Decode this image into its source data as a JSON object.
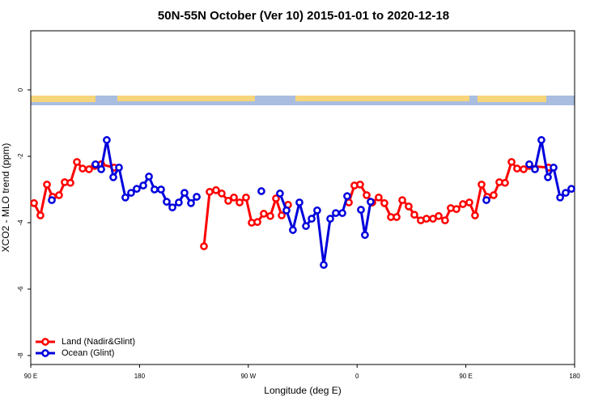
{
  "chart_data": {
    "type": "line",
    "title": "50N-55N October (Ver 10)   2015-01-01 to 2020-12-18",
    "xlabel": "Longitude (deg E)",
    "ylabel": "XCO2 - MLO trend (ppm)",
    "xlim": [
      90,
      540
    ],
    "ylim": [
      -8.27,
      1.78
    ],
    "xticks": [
      {
        "value": 90,
        "label": "90 E"
      },
      {
        "value": 180,
        "label": "180"
      },
      {
        "value": 270,
        "label": "90 W"
      },
      {
        "value": 360,
        "label": "0"
      },
      {
        "value": 450,
        "label": "90 E"
      },
      {
        "value": 540,
        "label": "180"
      }
    ],
    "yticks": [
      0,
      -2,
      -4,
      -6,
      -8
    ],
    "legend": "bottom-left",
    "series": [
      {
        "name": "Land (Nadir&Glint)",
        "color": "#ff0000",
        "x": [
          92.7,
          98.0,
          103.4,
          108.1,
          113.4,
          118.1,
          122.8,
          128.2,
          132.9,
          138.2,
          142.9,
          148.3,
          159.0,
          null,
          233.3,
          238.0,
          243.3,
          248.0,
          253.4,
          258.1,
          262.8,
          268.1,
          272.8,
          277.5,
          282.8,
          288.2,
          292.9,
          297.6,
          302.9,
          null,
          353.2,
          357.8,
          362.5,
          367.9,
          372.6,
          377.9,
          382.6,
          388.0,
          392.7,
          397.4,
          402.7,
          407.4,
          412.7,
          417.4,
          422.8,
          427.5,
          432.8,
          437.5,
          442.2,
          447.6,
          452.9,
          457.6,
          463.0,
          467.7,
          473.0,
          477.7,
          482.4,
          487.8,
          492.4,
          497.8,
          502.5,
          518.5
        ],
        "values": [
          -3.41,
          -3.78,
          -2.85,
          -3.22,
          -3.17,
          -2.78,
          -2.8,
          -2.17,
          -2.37,
          -2.39,
          -2.29,
          -2.24,
          -2.34,
          null,
          -4.71,
          -3.07,
          -3.02,
          -3.12,
          -3.34,
          -3.24,
          -3.39,
          -3.24,
          -4.0,
          -3.98,
          -3.73,
          -3.8,
          -3.27,
          -3.78,
          -3.46,
          null,
          -3.39,
          -2.88,
          -2.85,
          -3.17,
          -3.39,
          -3.24,
          -3.41,
          -3.83,
          -3.83,
          -3.32,
          -3.51,
          -3.76,
          -3.93,
          -3.88,
          -3.88,
          -3.8,
          -3.93,
          -3.56,
          -3.59,
          -3.44,
          -3.39,
          -3.78,
          -2.85,
          -3.22,
          -3.17,
          -2.78,
          -2.8,
          -2.17,
          -2.37,
          -2.39,
          -2.29,
          -2.34
        ]
      },
      {
        "name": "Ocean (Glint)",
        "color": "#0000dd",
        "x": [
          107.4,
          null,
          143.6,
          148.3,
          152.9,
          158.3,
          163.0,
          168.3,
          173.0,
          177.7,
          183.1,
          187.8,
          192.4,
          197.8,
          202.5,
          207.2,
          212.5,
          217.2,
          222.6,
          227.3,
          null,
          280.8,
          null,
          296.2,
          301.6,
          306.9,
          312.3,
          317.7,
          322.4,
          327.0,
          332.4,
          337.8,
          342.4,
          347.8,
          351.8,
          null,
          363.2,
          366.5,
          371.2,
          null,
          467.0,
          null,
          502.5,
          507.2,
          512.5,
          517.9,
          522.6,
          528.0,
          532.6,
          537.3
        ],
        "values": [
          -3.32,
          null,
          -2.24,
          -2.39,
          -1.51,
          -2.63,
          -2.34,
          -3.24,
          -3.1,
          -2.98,
          -2.88,
          -2.61,
          -3.0,
          -3.0,
          -3.37,
          -3.54,
          -3.39,
          -3.1,
          -3.41,
          -3.22,
          null,
          -3.05,
          null,
          -3.12,
          -3.63,
          -4.22,
          -3.39,
          -4.1,
          -3.88,
          -3.63,
          -5.27,
          -3.88,
          -3.71,
          -3.71,
          -3.2,
          null,
          -3.61,
          -4.37,
          -3.37,
          null,
          -3.32,
          null,
          -2.24,
          -2.39,
          -1.51,
          -2.63,
          -2.34,
          -3.24,
          -3.1,
          -2.98
        ]
      }
    ]
  }
}
